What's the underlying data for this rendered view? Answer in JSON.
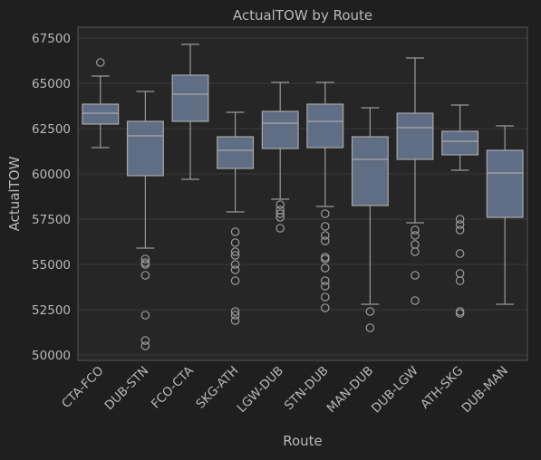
{
  "colors": {
    "background": "#1f1f1f",
    "plot_background": "#262626",
    "grid": "#3b3b3b",
    "spine": "#555555",
    "text": "#b8b8b8",
    "box_fill": "#5f6d85",
    "box_edge": "#a9a9a9",
    "whisker": "#9a9a9a"
  },
  "chart_data": {
    "type": "box",
    "title": "ActualTOW by Route",
    "xlabel": "Route",
    "ylabel": "ActualTOW",
    "ylim": [
      49700,
      68100
    ],
    "yticks": [
      50000,
      52500,
      55000,
      57500,
      60000,
      62500,
      65000,
      67500
    ],
    "ytick_labels": [
      "50000",
      "52500",
      "55000",
      "57500",
      "60000",
      "62500",
      "65000",
      "67500"
    ],
    "grid": true,
    "categories": [
      "CTA-FCO",
      "DUB-STN",
      "FCO-CTA",
      "SKG-ATH",
      "LGW-DUB",
      "STN-DUB",
      "MAN-DUB",
      "DUB-LGW",
      "ATH-SKG",
      "DUB-MAN"
    ],
    "boxes": [
      {
        "whislo": 61450,
        "q1": 62750,
        "med": 63350,
        "q3": 63850,
        "whishi": 65400,
        "fliers": [
          66150
        ]
      },
      {
        "whislo": 55900,
        "q1": 59900,
        "med": 62100,
        "q3": 62900,
        "whishi": 64550,
        "fliers": [
          55300,
          55100,
          55000,
          54400,
          52200,
          50800,
          50500
        ]
      },
      {
        "whislo": 59700,
        "q1": 62900,
        "med": 64400,
        "q3": 65450,
        "whishi": 67150,
        "fliers": []
      },
      {
        "whislo": 57900,
        "q1": 60300,
        "med": 61300,
        "q3": 62050,
        "whishi": 63400,
        "fliers": [
          56800,
          56200,
          55700,
          55500,
          55000,
          54700,
          54100,
          52400,
          52200,
          51900
        ]
      },
      {
        "whislo": 58600,
        "q1": 61400,
        "med": 62800,
        "q3": 63450,
        "whishi": 65050,
        "fliers": [
          58300,
          58000,
          57800,
          57600,
          57000
        ]
      },
      {
        "whislo": 58200,
        "q1": 61450,
        "med": 62900,
        "q3": 63850,
        "whishi": 65050,
        "fliers": [
          57800,
          57100,
          56600,
          56300,
          55400,
          55300,
          54800,
          54100,
          53800,
          53200,
          52600
        ]
      },
      {
        "whislo": 52800,
        "q1": 58250,
        "med": 60800,
        "q3": 62050,
        "whishi": 63650,
        "fliers": [
          52400,
          51500
        ]
      },
      {
        "whislo": 57300,
        "q1": 60800,
        "med": 62550,
        "q3": 63350,
        "whishi": 66400,
        "fliers": [
          56900,
          56600,
          56100,
          55700,
          54400,
          53000
        ]
      },
      {
        "whislo": 60200,
        "q1": 61050,
        "med": 61800,
        "q3": 62350,
        "whishi": 63800,
        "fliers": [
          57500,
          57200,
          56900,
          55600,
          54500,
          54100,
          52400,
          52300
        ]
      },
      {
        "whislo": 52800,
        "q1": 57600,
        "med": 60050,
        "q3": 61300,
        "whishi": 62650,
        "fliers": []
      }
    ]
  }
}
